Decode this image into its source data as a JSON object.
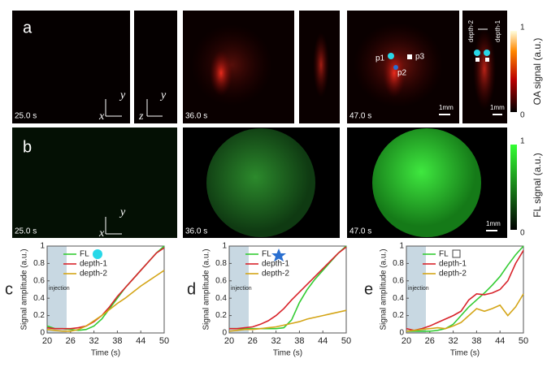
{
  "panels": {
    "a": {
      "label": "a",
      "times": [
        "25.0 s",
        "36.0 s",
        "47.0 s"
      ],
      "axes": {
        "x": "x",
        "y": "y",
        "z": "z"
      },
      "points": [
        "p1",
        "p2",
        "p3"
      ],
      "depths": [
        "depth-2",
        "depth-1"
      ],
      "scale": "1mm",
      "colorbar": {
        "title": "OA signal (a.u.)",
        "max": 1,
        "min": 0
      }
    },
    "b": {
      "label": "b",
      "times": [
        "25.0 s",
        "36.0 s",
        "47.0 s"
      ],
      "axes": {
        "x": "x",
        "y": "y"
      },
      "scale": "1mm",
      "colorbar": {
        "title": "FL signal (a.u.)",
        "max": 1,
        "min": 0
      }
    }
  },
  "chart_data": [
    {
      "type": "line",
      "label": "c",
      "xlabel": "Time (s)",
      "ylabel": "Signal amplitude (a.u.)",
      "annotation": "injection",
      "shade": [
        20,
        25
      ],
      "x": [
        20,
        22,
        24,
        26,
        28,
        30,
        32,
        34,
        36,
        38,
        40,
        42,
        44,
        46,
        48,
        50
      ],
      "xlim": [
        20,
        50
      ],
      "xticks": [
        20,
        26,
        32,
        38,
        44,
        50
      ],
      "ylim": [
        0,
        1
      ],
      "yticks": [
        0,
        0.2,
        0.4,
        0.6,
        0.8,
        1
      ],
      "series": [
        {
          "name": "FL",
          "color": "#33cc33",
          "values": [
            0.08,
            0.05,
            0.05,
            0.04,
            0.03,
            0.04,
            0.08,
            0.16,
            0.28,
            0.4,
            0.52,
            0.62,
            0.72,
            0.82,
            0.92,
            1.0
          ]
        },
        {
          "name": "depth-1",
          "color": "#d8232a",
          "values": [
            0.06,
            0.05,
            0.05,
            0.05,
            0.06,
            0.08,
            0.13,
            0.2,
            0.3,
            0.42,
            0.52,
            0.62,
            0.72,
            0.82,
            0.92,
            0.98
          ]
        },
        {
          "name": "depth-2",
          "color": "#d4a517",
          "values": [
            0.04,
            0.03,
            0.02,
            0.02,
            0.04,
            0.08,
            0.14,
            0.2,
            0.27,
            0.34,
            0.4,
            0.47,
            0.54,
            0.6,
            0.66,
            0.72
          ]
        }
      ]
    },
    {
      "type": "line",
      "label": "d",
      "xlabel": "Time (s)",
      "ylabel": "Signal amplitude (a.u.)",
      "annotation": "injection",
      "shade": [
        20,
        25
      ],
      "x": [
        20,
        22,
        24,
        26,
        28,
        30,
        32,
        34,
        36,
        38,
        40,
        42,
        44,
        46,
        48,
        50
      ],
      "xlim": [
        20,
        50
      ],
      "xticks": [
        20,
        26,
        32,
        38,
        44,
        50
      ],
      "ylim": [
        0,
        1
      ],
      "yticks": [
        0,
        0.2,
        0.4,
        0.6,
        0.8,
        1
      ],
      "series": [
        {
          "name": "FL",
          "color": "#33cc33",
          "values": [
            0.05,
            0.05,
            0.05,
            0.05,
            0.05,
            0.05,
            0.05,
            0.06,
            0.15,
            0.35,
            0.5,
            0.62,
            0.72,
            0.82,
            0.92,
            1.0
          ]
        },
        {
          "name": "depth-1",
          "color": "#d8232a",
          "values": [
            0.05,
            0.05,
            0.06,
            0.07,
            0.1,
            0.14,
            0.2,
            0.28,
            0.38,
            0.47,
            0.56,
            0.65,
            0.74,
            0.83,
            0.92,
            0.99
          ]
        },
        {
          "name": "depth-2",
          "color": "#d4a517",
          "values": [
            0.02,
            0.03,
            0.04,
            0.04,
            0.05,
            0.06,
            0.07,
            0.09,
            0.11,
            0.13,
            0.16,
            0.18,
            0.2,
            0.22,
            0.24,
            0.26
          ]
        }
      ]
    },
    {
      "type": "line",
      "label": "e",
      "xlabel": "Time (s)",
      "ylabel": "Signal amplitude (a.u.)",
      "annotation": "injection",
      "shade": [
        20,
        25
      ],
      "x": [
        20,
        22,
        24,
        26,
        28,
        30,
        32,
        34,
        36,
        38,
        40,
        42,
        44,
        46,
        48,
        50
      ],
      "xlim": [
        20,
        50
      ],
      "xticks": [
        20,
        26,
        32,
        38,
        44,
        50
      ],
      "ylim": [
        0,
        1
      ],
      "yticks": [
        0,
        0.2,
        0.4,
        0.6,
        0.8,
        1
      ],
      "series": [
        {
          "name": "FL",
          "color": "#33cc33",
          "values": [
            0.02,
            0.02,
            0.02,
            0.02,
            0.03,
            0.05,
            0.1,
            0.2,
            0.3,
            0.38,
            0.46,
            0.55,
            0.65,
            0.78,
            0.9,
            1.0
          ]
        },
        {
          "name": "depth-1",
          "color": "#d8232a",
          "values": [
            0.05,
            0.03,
            0.05,
            0.08,
            0.12,
            0.16,
            0.2,
            0.25,
            0.38,
            0.45,
            0.44,
            0.46,
            0.5,
            0.6,
            0.8,
            0.95
          ]
        },
        {
          "name": "depth-2",
          "color": "#d4a517",
          "values": [
            0.02,
            0.03,
            0.04,
            0.05,
            0.06,
            0.05,
            0.08,
            0.12,
            0.2,
            0.28,
            0.25,
            0.28,
            0.32,
            0.2,
            0.3,
            0.45
          ]
        }
      ]
    }
  ]
}
